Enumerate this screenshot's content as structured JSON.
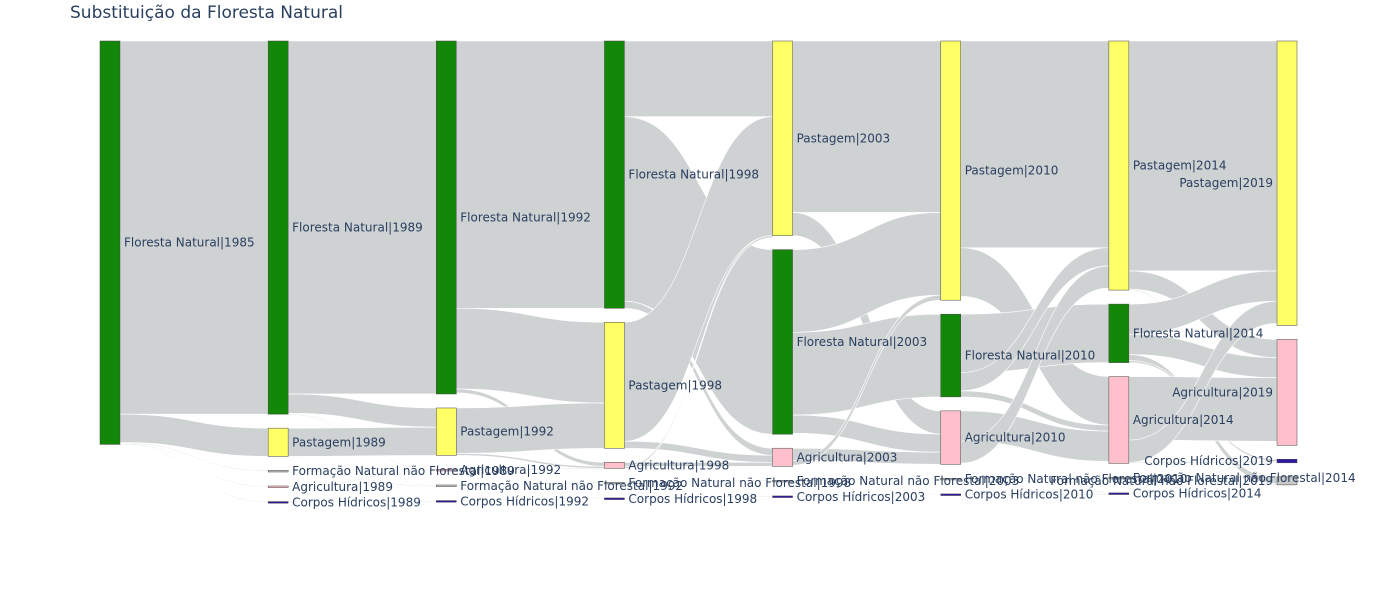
{
  "title": "Substituição da Floresta Natural",
  "colors": {
    "floresta": "#138808",
    "pastagem": "#ffff66",
    "agricultura": "#ffc0cb",
    "formacao": "#c8c8c8",
    "corpos": "#2c16a8",
    "link": "#cfd2d3",
    "nodeStroke": "#444444"
  },
  "columns": [
    "1985",
    "1989",
    "1992",
    "1998",
    "2003",
    "2010",
    "2014",
    "2019"
  ],
  "chart_data": {
    "type": "sankey",
    "nodes": [
      {
        "id": "FN1985",
        "label": "Floresta Natural|1985",
        "col": 0,
        "cat": "floresta",
        "value": 400
      },
      {
        "id": "FN1989",
        "label": "Floresta Natural|1989",
        "col": 1,
        "cat": "floresta",
        "value": 370
      },
      {
        "id": "P1989",
        "label": "Pastagem|1989",
        "col": 1,
        "cat": "pastagem",
        "value": 28
      },
      {
        "id": "FNNF1989",
        "label": "Formação Natural não Florestal|1989",
        "col": 1,
        "cat": "formacao",
        "value": 0.6
      },
      {
        "id": "A1989",
        "label": "Agricultura|1989",
        "col": 1,
        "cat": "agricultura",
        "value": 0.5
      },
      {
        "id": "CH1989",
        "label": "Corpos Hídricos|1989",
        "col": 1,
        "cat": "corpos",
        "value": 0.5
      },
      {
        "id": "FN1992",
        "label": "Floresta Natural|1992",
        "col": 2,
        "cat": "floresta",
        "value": 350
      },
      {
        "id": "P1992",
        "label": "Pastagem|1992",
        "col": 2,
        "cat": "pastagem",
        "value": 47
      },
      {
        "id": "A1992",
        "label": "Agricultura|1992",
        "col": 2,
        "cat": "agricultura",
        "value": 0.6
      },
      {
        "id": "FNNF1992",
        "label": "Formação Natural não Florestal|1992",
        "col": 2,
        "cat": "formacao",
        "value": 0.6
      },
      {
        "id": "CH1992",
        "label": "Corpos Hídricos|1992",
        "col": 2,
        "cat": "corpos",
        "value": 0.5
      },
      {
        "id": "FN1998",
        "label": "Floresta Natural|1998",
        "col": 3,
        "cat": "floresta",
        "value": 265
      },
      {
        "id": "P1998",
        "label": "Pastagem|1998",
        "col": 3,
        "cat": "pastagem",
        "value": 125
      },
      {
        "id": "A1998",
        "label": "Agricultura|1998",
        "col": 3,
        "cat": "agricultura",
        "value": 6
      },
      {
        "id": "FNNF1998",
        "label": "Formação Natural não Florestal|1998",
        "col": 3,
        "cat": "formacao",
        "value": 0.6
      },
      {
        "id": "CH1998",
        "label": "Corpos Hídricos|1998",
        "col": 3,
        "cat": "corpos",
        "value": 0.5
      },
      {
        "id": "P2003",
        "label": "Pastagem|2003",
        "col": 4,
        "cat": "pastagem",
        "value": 193
      },
      {
        "id": "FN2003",
        "label": "Floresta Natural|2003",
        "col": 4,
        "cat": "floresta",
        "value": 183
      },
      {
        "id": "A2003",
        "label": "Agricultura|2003",
        "col": 4,
        "cat": "agricultura",
        "value": 18
      },
      {
        "id": "FNNF2003",
        "label": "Formação Natural não Florestal|2003",
        "col": 4,
        "cat": "formacao",
        "value": 0.6
      },
      {
        "id": "CH2003",
        "label": "Corpos Hídricos|2003",
        "col": 4,
        "cat": "corpos",
        "value": 0.5
      },
      {
        "id": "P2010",
        "label": "Pastagem|2010",
        "col": 5,
        "cat": "pastagem",
        "value": 257
      },
      {
        "id": "FN2010",
        "label": "Floresta Natural|2010",
        "col": 5,
        "cat": "floresta",
        "value": 82
      },
      {
        "id": "A2010",
        "label": "Agricultura|2010",
        "col": 5,
        "cat": "agricultura",
        "value": 53
      },
      {
        "id": "FNNF2010",
        "label": "Formação Natural não Florestal|2010",
        "col": 5,
        "cat": "formacao",
        "value": 0.6
      },
      {
        "id": "CH2010",
        "label": "Corpos Hídricos|2010",
        "col": 5,
        "cat": "corpos",
        "value": 1.5
      },
      {
        "id": "P2014",
        "label": "Pastagem|2014",
        "col": 6,
        "cat": "pastagem",
        "value": 247
      },
      {
        "id": "FN2014",
        "label": "Floresta Natural|2014",
        "col": 6,
        "cat": "floresta",
        "value": 58
      },
      {
        "id": "A2014",
        "label": "Agricultura|2014",
        "col": 6,
        "cat": "agricultura",
        "value": 86
      },
      {
        "id": "FNNF2014",
        "label": "Formação Natural não Florestal|2014",
        "col": 6,
        "cat": "formacao",
        "value": 0.6
      },
      {
        "id": "CH2014",
        "label": "Corpos Hídricos|2014",
        "col": 6,
        "cat": "corpos",
        "value": 1.2
      },
      {
        "id": "P2019",
        "label": "Pastagem|2019",
        "col": 7,
        "cat": "pastagem",
        "value": 282
      },
      {
        "id": "A2019",
        "label": "Agricultura|2019",
        "col": 7,
        "cat": "agricultura",
        "value": 105
      },
      {
        "id": "CH2019",
        "label": "Corpos Hídricos|2019",
        "col": 7,
        "cat": "corpos",
        "value": 3.5
      },
      {
        "id": "FNNF2019",
        "label": "Formação Natural não Florestal|2019",
        "col": 7,
        "cat": "formacao",
        "value": 8
      }
    ],
    "links": [
      {
        "source": "FN1985",
        "target": "FN1989",
        "value": 370
      },
      {
        "source": "FN1985",
        "target": "P1989",
        "value": 28
      },
      {
        "source": "FN1985",
        "target": "FNNF1989",
        "value": 0.6
      },
      {
        "source": "FN1985",
        "target": "A1989",
        "value": 0.5
      },
      {
        "source": "FN1985",
        "target": "CH1989",
        "value": 0.5
      },
      {
        "source": "FN1989",
        "target": "FN1992",
        "value": 350
      },
      {
        "source": "FN1989",
        "target": "P1992",
        "value": 19
      },
      {
        "source": "FN1989",
        "target": "A1992",
        "value": 0.5
      },
      {
        "source": "FN1989",
        "target": "FNNF1992",
        "value": 0.5
      },
      {
        "source": "P1989",
        "target": "P1992",
        "value": 28
      },
      {
        "source": "FNNF1989",
        "target": "FNNF1992",
        "value": 0.6
      },
      {
        "source": "A1989",
        "target": "A1992",
        "value": 0.5
      },
      {
        "source": "CH1989",
        "target": "CH1992",
        "value": 0.5
      },
      {
        "source": "FN1992",
        "target": "FN1998",
        "value": 265
      },
      {
        "source": "FN1992",
        "target": "P1998",
        "value": 80
      },
      {
        "source": "FN1992",
        "target": "A1998",
        "value": 4
      },
      {
        "source": "P1992",
        "target": "P1998",
        "value": 45
      },
      {
        "source": "P1992",
        "target": "A1998",
        "value": 2
      },
      {
        "source": "A1992",
        "target": "A1998",
        "value": 0.6
      },
      {
        "source": "FNNF1992",
        "target": "FNNF1998",
        "value": 0.6
      },
      {
        "source": "CH1992",
        "target": "CH1998",
        "value": 0.5
      },
      {
        "source": "FN1998",
        "target": "P2003",
        "value": 75
      },
      {
        "source": "FN1998",
        "target": "FN2003",
        "value": 183
      },
      {
        "source": "FN1998",
        "target": "A2003",
        "value": 7
      },
      {
        "source": "P1998",
        "target": "P2003",
        "value": 118
      },
      {
        "source": "P1998",
        "target": "A2003",
        "value": 7
      },
      {
        "source": "A1998",
        "target": "A2003",
        "value": 4
      },
      {
        "source": "A1998",
        "target": "P2003",
        "value": 2
      },
      {
        "source": "FNNF1998",
        "target": "FNNF2003",
        "value": 0.6
      },
      {
        "source": "CH1998",
        "target": "CH2003",
        "value": 0.5
      },
      {
        "source": "P2003",
        "target": "P2010",
        "value": 170
      },
      {
        "source": "P2003",
        "target": "A2010",
        "value": 23
      },
      {
        "source": "FN2003",
        "target": "P2010",
        "value": 82
      },
      {
        "source": "FN2003",
        "target": "FN2010",
        "value": 82
      },
      {
        "source": "FN2003",
        "target": "A2010",
        "value": 18
      },
      {
        "source": "A2003",
        "target": "A2010",
        "value": 12
      },
      {
        "source": "A2003",
        "target": "P2010",
        "value": 5
      },
      {
        "source": "FNNF2003",
        "target": "FNNF2010",
        "value": 0.6
      },
      {
        "source": "CH2003",
        "target": "CH2010",
        "value": 0.5
      },
      {
        "source": "P2010",
        "target": "P2014",
        "value": 205
      },
      {
        "source": "P2010",
        "target": "A2014",
        "value": 48
      },
      {
        "source": "P2010",
        "target": "CH2014",
        "value": 0.5
      },
      {
        "source": "FN2010",
        "target": "FN2014",
        "value": 58
      },
      {
        "source": "FN2010",
        "target": "P2014",
        "value": 18
      },
      {
        "source": "FN2010",
        "target": "A2014",
        "value": 6
      },
      {
        "source": "A2010",
        "target": "A2014",
        "value": 30
      },
      {
        "source": "A2010",
        "target": "P2014",
        "value": 22
      },
      {
        "source": "FNNF2010",
        "target": "FNNF2014",
        "value": 0.6
      },
      {
        "source": "CH2010",
        "target": "CH2014",
        "value": 0.7
      },
      {
        "source": "P2014",
        "target": "P2019",
        "value": 228
      },
      {
        "source": "P2014",
        "target": "A2019",
        "value": 18
      },
      {
        "source": "P2014",
        "target": "FNNF2019",
        "value": 1
      },
      {
        "source": "FN2014",
        "target": "P2019",
        "value": 30
      },
      {
        "source": "FN2014",
        "target": "A2019",
        "value": 20
      },
      {
        "source": "FN2014",
        "target": "FNNF2019",
        "value": 6
      },
      {
        "source": "FN2014",
        "target": "CH2019",
        "value": 2
      },
      {
        "source": "A2014",
        "target": "A2019",
        "value": 63
      },
      {
        "source": "A2014",
        "target": "P2019",
        "value": 22
      },
      {
        "source": "A2014",
        "target": "CH2019",
        "value": 1
      },
      {
        "source": "FNNF2014",
        "target": "FNNF2019",
        "value": 0.6
      },
      {
        "source": "CH2014",
        "target": "CH2019",
        "value": 0.5
      }
    ]
  }
}
